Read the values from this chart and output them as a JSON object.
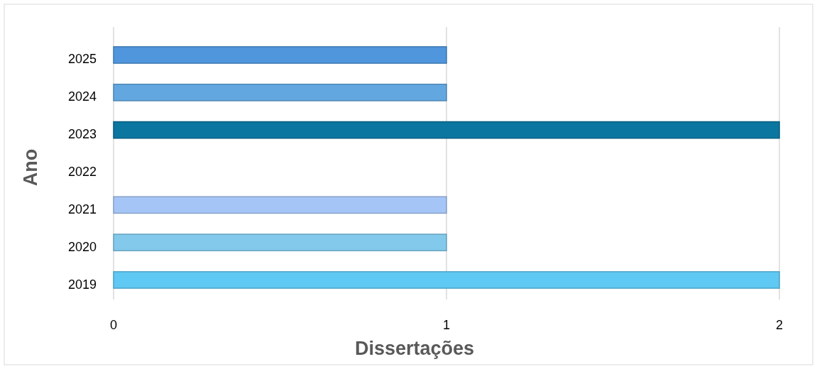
{
  "chart_data": {
    "type": "bar",
    "orientation": "horizontal",
    "xlabel": "Dissertações",
    "ylabel": "Ano",
    "categories": [
      "2025",
      "2024",
      "2023",
      "2022",
      "2021",
      "2020",
      "2019"
    ],
    "values": [
      1,
      1,
      2,
      0,
      1,
      1,
      2
    ],
    "colors": [
      "#4f96dc",
      "#62a7e0",
      "#0b769f",
      "#0f2a3a",
      "#a6c5f7",
      "#82c9eb",
      "#5fc9f3"
    ],
    "xlim": [
      0,
      2
    ],
    "xticks": [
      0,
      1,
      2
    ],
    "grid": "x"
  }
}
